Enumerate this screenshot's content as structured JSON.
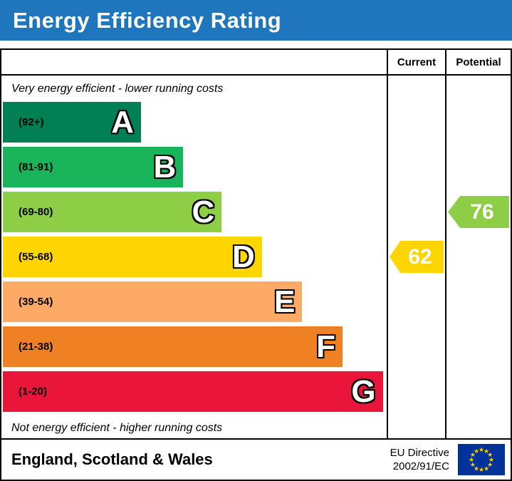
{
  "title": "Energy Efficiency Rating",
  "columns": {
    "current": "Current",
    "potential": "Potential"
  },
  "chart_data": {
    "type": "bar",
    "title": "Energy Efficiency Rating",
    "top_note": "Very energy efficient - lower running costs",
    "bottom_note": "Not energy efficient - higher running costs",
    "bands": [
      {
        "letter": "A",
        "range_label": "(92+)",
        "min": 92,
        "max": 100,
        "color": "#008054",
        "width_pct": 36
      },
      {
        "letter": "B",
        "range_label": "(81-91)",
        "min": 81,
        "max": 91,
        "color": "#19b459",
        "width_pct": 47
      },
      {
        "letter": "C",
        "range_label": "(69-80)",
        "min": 69,
        "max": 80,
        "color": "#8dce46",
        "width_pct": 57
      },
      {
        "letter": "D",
        "range_label": "(55-68)",
        "min": 55,
        "max": 68,
        "color": "#ffd500",
        "width_pct": 67.5
      },
      {
        "letter": "E",
        "range_label": "(39-54)",
        "min": 39,
        "max": 54,
        "color": "#fcaa65",
        "width_pct": 78
      },
      {
        "letter": "F",
        "range_label": "(21-38)",
        "min": 21,
        "max": 38,
        "color": "#ef8023",
        "width_pct": 88.5
      },
      {
        "letter": "G",
        "range_label": "(1-20)",
        "min": 1,
        "max": 20,
        "color": "#e9153b",
        "width_pct": 99
      }
    ],
    "current": {
      "value": 62,
      "band": "D",
      "color": "#ffd500"
    },
    "potential": {
      "value": 76,
      "band": "C",
      "color": "#8dce46"
    }
  },
  "footer": {
    "region": "England, Scotland & Wales",
    "directive_line1": "EU Directive",
    "directive_line2": "2002/91/EC",
    "flag_color": "#003399",
    "star_color": "#ffcc00"
  },
  "theme": {
    "header_bg": "#2076bc",
    "header_text": "#ffffff",
    "border": "#000000"
  }
}
